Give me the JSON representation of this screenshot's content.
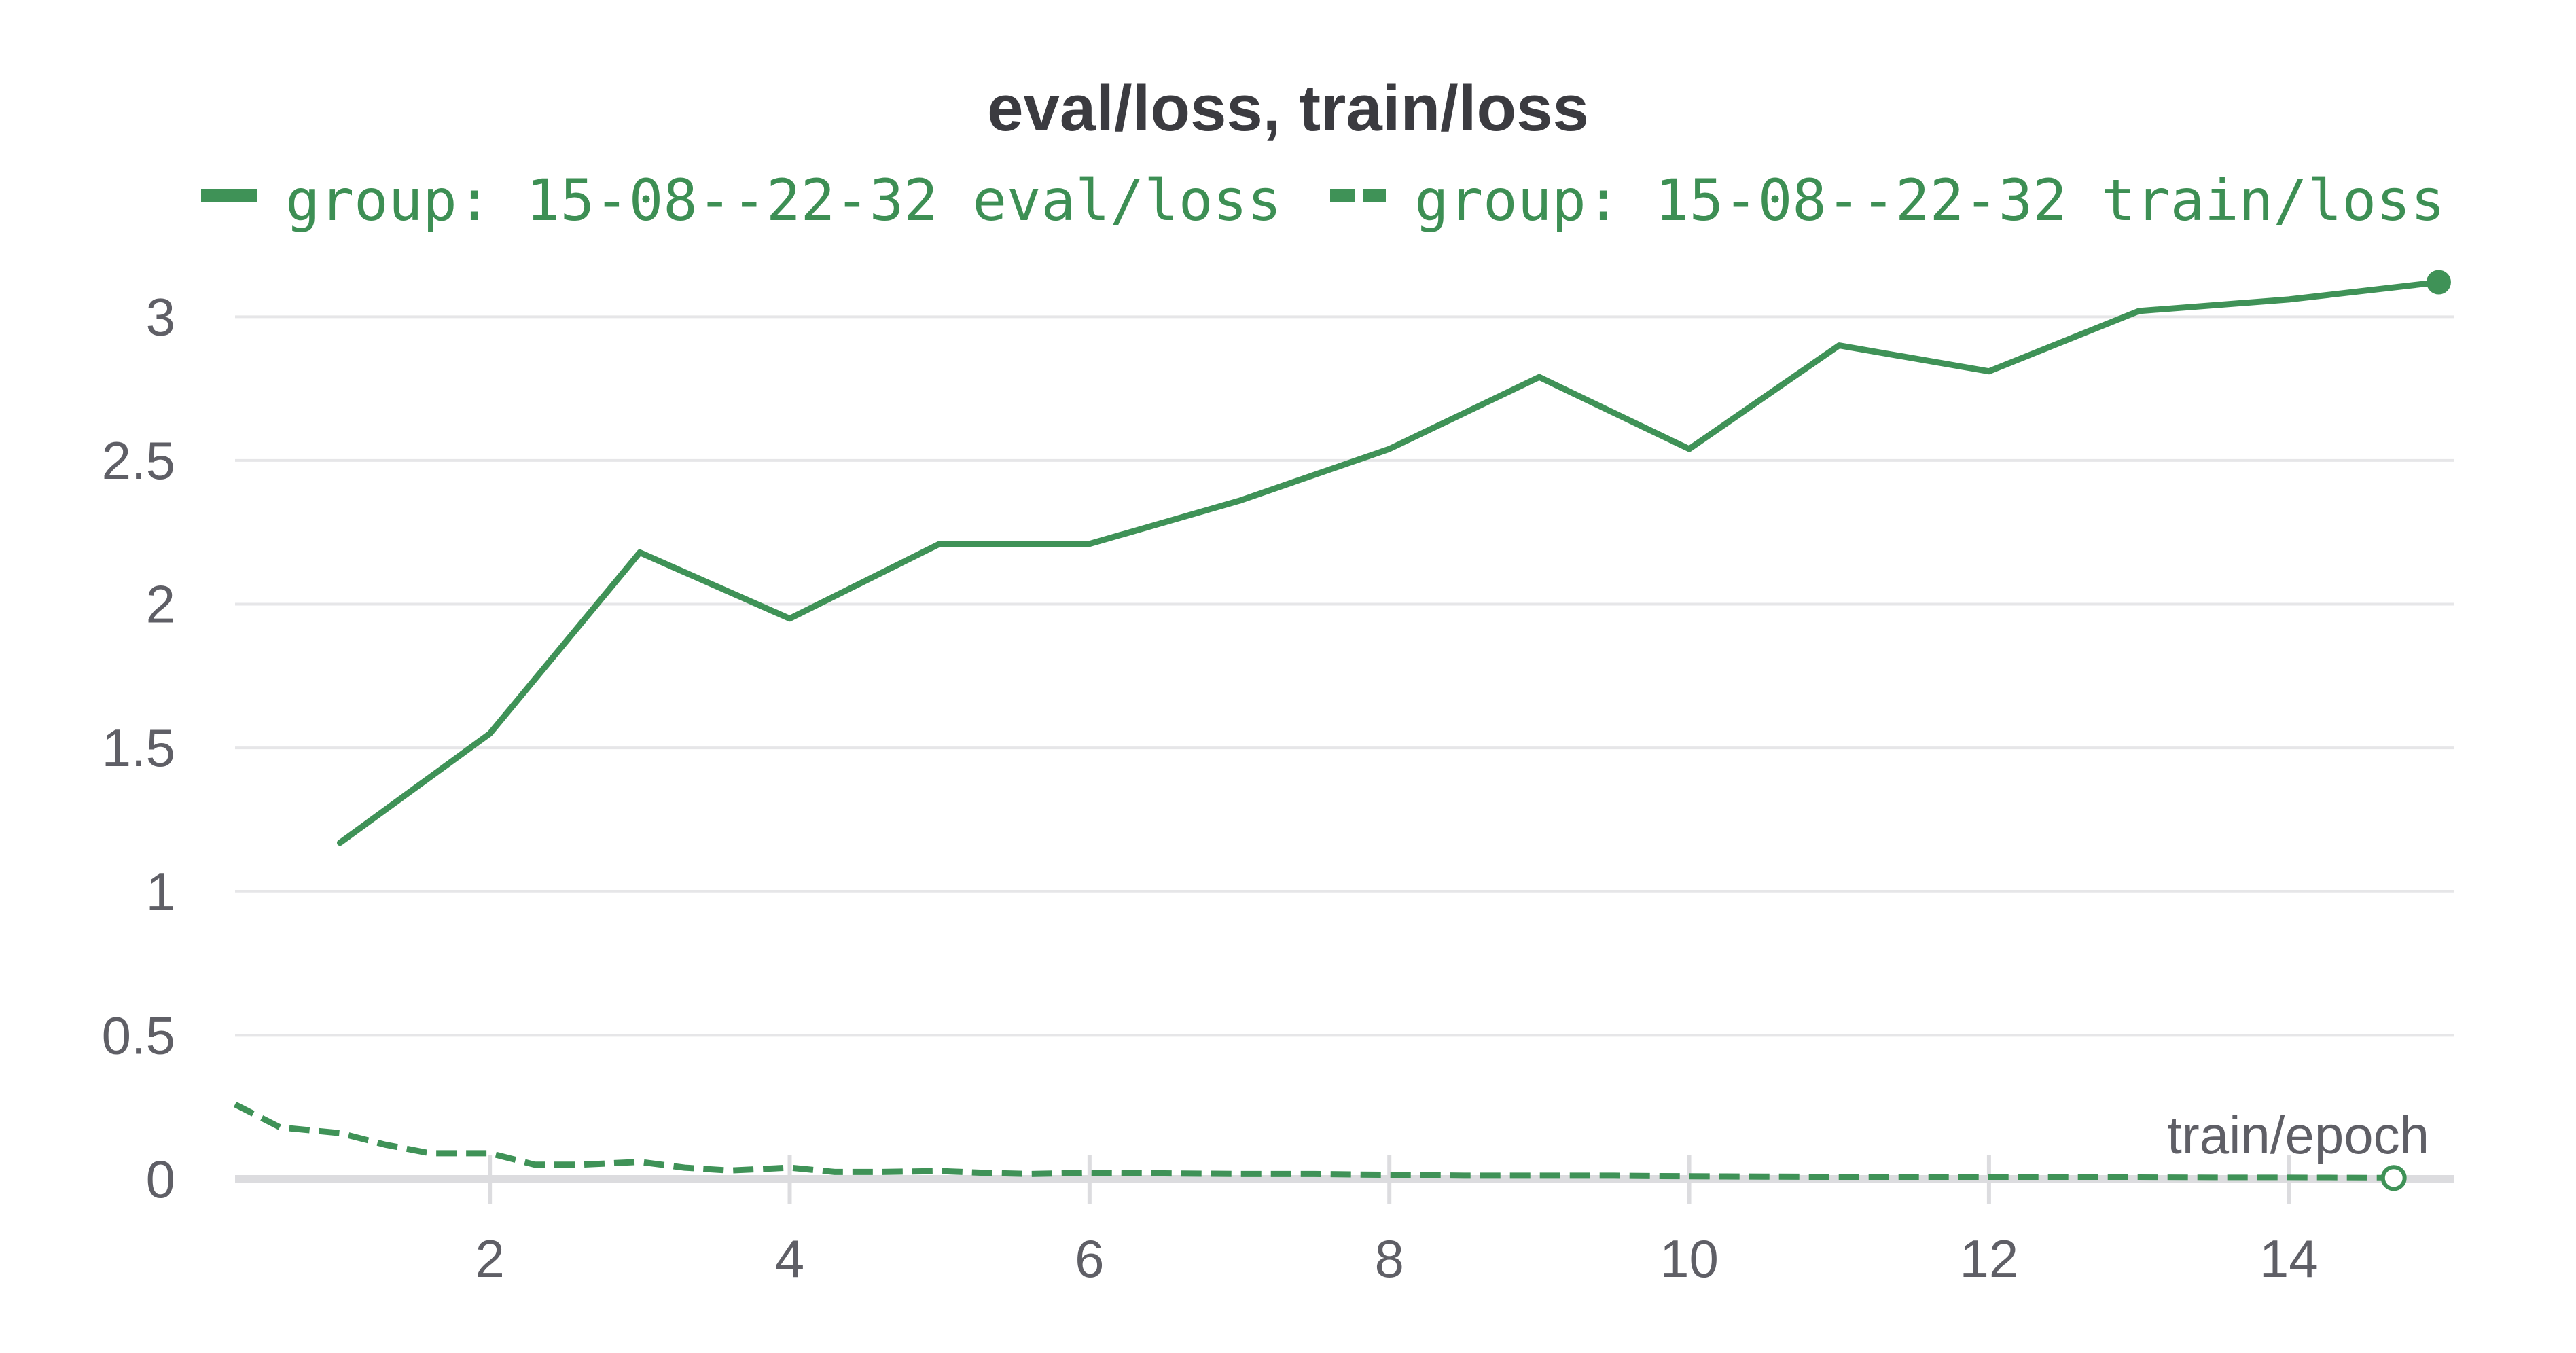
{
  "chart_data": {
    "type": "line",
    "title": "eval/loss, train/loss",
    "xlabel": "train/epoch",
    "ylabel": "",
    "xlim": [
      0.3,
      15.1
    ],
    "ylim": [
      0,
      3.1
    ],
    "x_ticks": [
      2,
      4,
      6,
      8,
      10,
      12,
      14
    ],
    "y_ticks": [
      0,
      0.5,
      1,
      1.5,
      2,
      2.5,
      3
    ],
    "x_tick_labels": [
      "2",
      "4",
      "6",
      "8",
      "10",
      "12",
      "14"
    ],
    "y_tick_labels": [
      "0",
      "0.5",
      "1",
      "1.5",
      "2",
      "2.5",
      "3"
    ],
    "grid": true,
    "legend_position": "top",
    "colors": {
      "series": "#3f9257",
      "grid": "#e6e6e8",
      "axis": "#dcdcdf",
      "text": "#5f5f66",
      "title": "#3b3b40"
    },
    "series": [
      {
        "name": "group: 15-08--22-32 eval/loss",
        "style": "solid",
        "x": [
          1,
          2,
          3,
          4,
          5,
          6,
          7,
          8,
          9,
          10,
          11,
          12,
          13,
          14,
          15
        ],
        "y": [
          1.17,
          1.55,
          2.18,
          1.95,
          2.21,
          2.21,
          2.36,
          2.54,
          2.79,
          2.54,
          2.9,
          2.81,
          3.02,
          3.06,
          3.12
        ],
        "end_marker": true
      },
      {
        "name": "group: 15-08--22-32 train/loss",
        "style": "dashed",
        "x": [
          0.3,
          0.6,
          1.0,
          1.3,
          1.6,
          2.0,
          2.3,
          2.6,
          3.0,
          3.3,
          3.6,
          4.0,
          4.3,
          4.6,
          5.0,
          5.3,
          5.6,
          6.0,
          6.5,
          7.0,
          7.5,
          8.0,
          8.5,
          9.0,
          9.5,
          10.0,
          10.5,
          11.0,
          11.5,
          12.0,
          12.5,
          13.0,
          13.5,
          14.0,
          14.7
        ],
        "y": [
          0.26,
          0.18,
          0.16,
          0.12,
          0.09,
          0.09,
          0.05,
          0.05,
          0.06,
          0.04,
          0.03,
          0.04,
          0.025,
          0.025,
          0.028,
          0.022,
          0.018,
          0.022,
          0.02,
          0.018,
          0.018,
          0.015,
          0.012,
          0.012,
          0.012,
          0.01,
          0.009,
          0.008,
          0.008,
          0.007,
          0.007,
          0.006,
          0.005,
          0.005,
          0.004
        ],
        "end_marker": true
      }
    ]
  }
}
